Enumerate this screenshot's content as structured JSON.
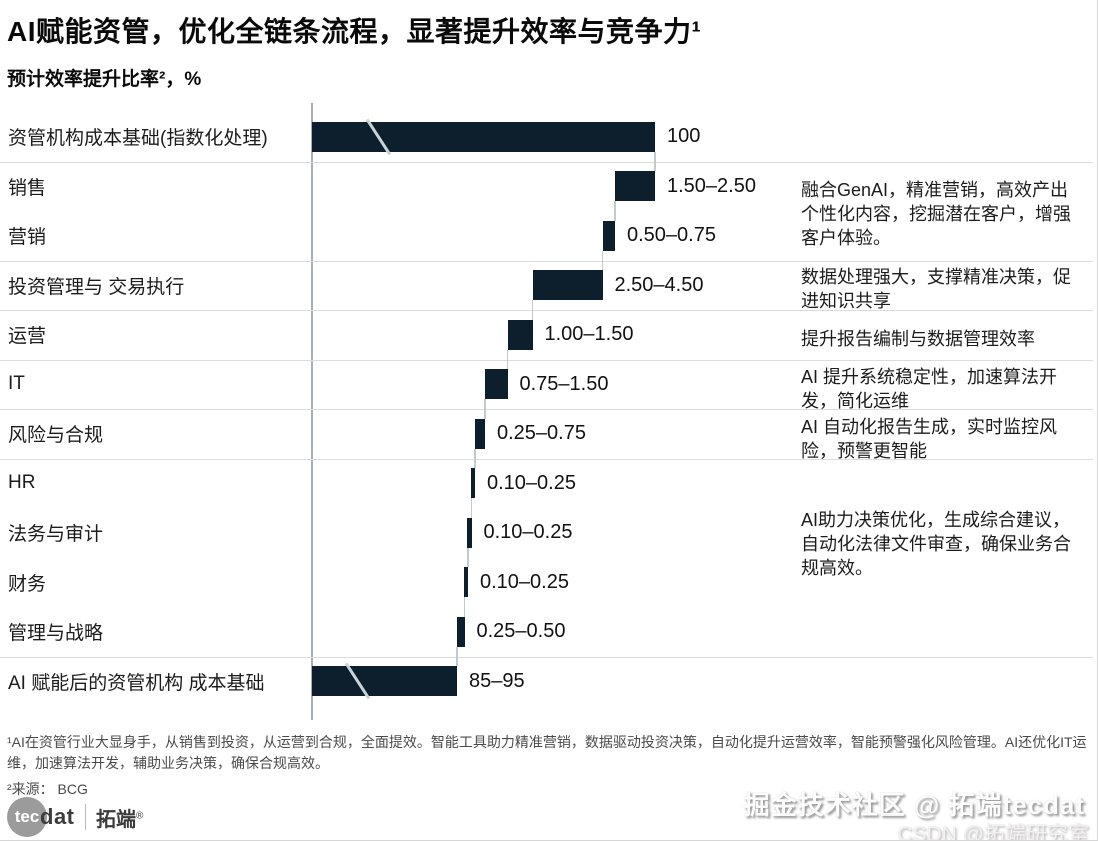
{
  "header": {
    "title": "AI赋能资管，优化全链条流程，显著提升效率与竞争力¹",
    "subtitle": "预计效率提升比率²，%"
  },
  "chart_data": {
    "type": "bar",
    "variant": "horizontal-waterfall",
    "title": "预计效率提升比率，%",
    "unit": "%",
    "legend": "none",
    "grid": "horizontal row separators",
    "bar_color": "#0d1f2c",
    "axis_breaks_on_total_bars": true,
    "rows": [
      {
        "label": "资管机构成本基础(指数化处理)",
        "value_label": "100",
        "low": 100,
        "high": 100,
        "total": true,
        "axis_break": true
      },
      {
        "label": "销售",
        "value_label": "1.50–2.50",
        "low": 1.5,
        "high": 2.5
      },
      {
        "label": "营销",
        "value_label": "0.50–0.75",
        "low": 0.5,
        "high": 0.75
      },
      {
        "label": "投资管理与 交易执行",
        "value_label": "2.50–4.50",
        "low": 2.5,
        "high": 4.5
      },
      {
        "label": "运营",
        "value_label": "1.00–1.50",
        "low": 1.0,
        "high": 1.5
      },
      {
        "label": "IT",
        "value_label": "0.75–1.50",
        "low": 0.75,
        "high": 1.5
      },
      {
        "label": "风险与合规",
        "value_label": "0.25–0.75",
        "low": 0.25,
        "high": 0.75
      },
      {
        "label": "HR",
        "value_label": "0.10–0.25",
        "low": 0.1,
        "high": 0.25
      },
      {
        "label": "法务与审计",
        "value_label": "0.10–0.25",
        "low": 0.1,
        "high": 0.25
      },
      {
        "label": "财务",
        "value_label": "0.10–0.25",
        "low": 0.1,
        "high": 0.25
      },
      {
        "label": "管理与战略",
        "value_label": "0.25–0.50",
        "low": 0.25,
        "high": 0.5
      },
      {
        "label": "AI 赋能后的资管机构 成本基础",
        "value_label": "85–95",
        "low": 85,
        "high": 95,
        "total": true,
        "axis_break": true
      }
    ],
    "annotations": [
      {
        "row_start": 1,
        "row_end": 2,
        "text": "融合GenAI，精准营销，高效产出个性化内容，挖掘潜在客户，增强客户体验。"
      },
      {
        "row_start": 3,
        "row_end": 3,
        "text": "数据处理强大，支撑精准决策，促进知识共享"
      },
      {
        "row_start": 4,
        "row_end": 4,
        "text": "提升报告编制与数据管理效率"
      },
      {
        "row_start": 5,
        "row_end": 5,
        "text": "AI 提升系统稳定性，加速算法开发，简化运维"
      },
      {
        "row_start": 6,
        "row_end": 6,
        "text": "AI 自动化报告生成，实时监控风险，预警更智能"
      },
      {
        "row_start": 7,
        "row_end": 10,
        "text": "AI助力决策优化，生成综合建议，自动化法律文件审查，确保业务合规高效。"
      }
    ],
    "separators_after_rows": [
      0,
      2,
      3,
      4,
      5,
      6,
      10
    ]
  },
  "footnotes": {
    "note1": "¹AI在资管行业大显身手，从销售到投资，从运营到合规，全面提效。智能工具助力精准营销，数据驱动投资决策，自动化提升运营效率，智能预警强化风险管理。AI还优化IT运维，加速算法开发，辅助业务决策，确保合规高效。",
    "note2": "²来源： BCG"
  },
  "logo": {
    "circle_text": "tec",
    "suffix": "dat",
    "brand": "拓端",
    "reg": "®"
  },
  "watermark": {
    "line1": "掘金技术社区 @ 拓端tecdat",
    "line2": "CSDN @拓端研究室"
  },
  "colors": {
    "bar": "#0d1f2c",
    "separator": "#dcdcdc",
    "axis": "#a9aeb2",
    "connector": "#c4c9cc",
    "break_slash": "#c9d3da"
  }
}
